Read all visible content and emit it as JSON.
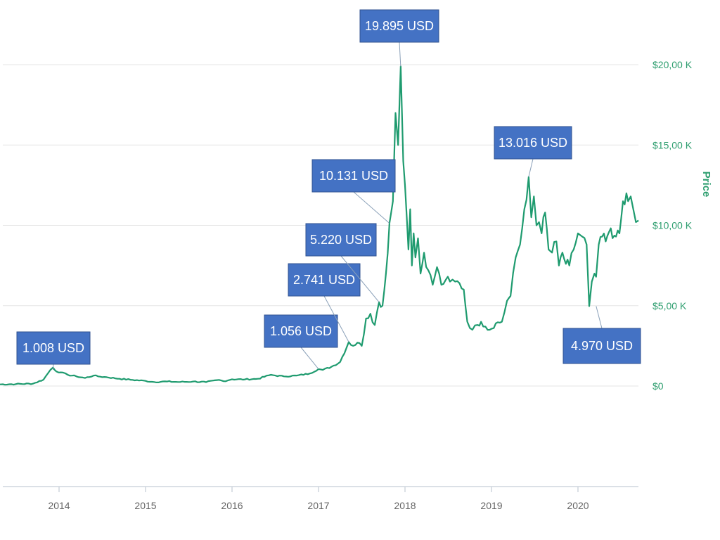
{
  "chart_data": {
    "type": "line",
    "ylabel": "Price",
    "ylim": [
      0,
      22000
    ],
    "x_range": [
      2013.3,
      2020.7
    ],
    "x_ticks": [
      {
        "value": 2014,
        "label": "2014"
      },
      {
        "value": 2015,
        "label": "2015"
      },
      {
        "value": 2016,
        "label": "2016"
      },
      {
        "value": 2017,
        "label": "2017"
      },
      {
        "value": 2018,
        "label": "2018"
      },
      {
        "value": 2019,
        "label": "2019"
      },
      {
        "value": 2020,
        "label": "2020"
      }
    ],
    "y_ticks": [
      {
        "value": 0,
        "label": "$0"
      },
      {
        "value": 5000,
        "label": "$5,00 K"
      },
      {
        "value": 10000,
        "label": "$10,00 K"
      },
      {
        "value": 15000,
        "label": "$15,00 K"
      },
      {
        "value": 20000,
        "label": "$20,00 K"
      }
    ],
    "grid": true,
    "series": [
      {
        "color": "#1f9b6f",
        "x": [
          2013.3,
          2013.5,
          2013.7,
          2013.82,
          2013.9,
          2013.93,
          2013.97,
          2014.02,
          2014.1,
          2014.2,
          2014.3,
          2014.4,
          2014.45,
          2014.55,
          2014.7,
          2014.85,
          2015.0,
          2015.1,
          2015.25,
          2015.4,
          2015.55,
          2015.7,
          2015.85,
          2015.9,
          2016.0,
          2016.15,
          2016.3,
          2016.45,
          2016.5,
          2016.6,
          2016.75,
          2016.9,
          2017.0,
          2017.05,
          2017.15,
          2017.25,
          2017.35,
          2017.4,
          2017.45,
          2017.5,
          2017.55,
          2017.6,
          2017.65,
          2017.7,
          2017.74,
          2017.78,
          2017.82,
          2017.86,
          2017.89,
          2017.92,
          2017.95,
          2017.965,
          2017.98,
          2018.0,
          2018.02,
          2018.04,
          2018.06,
          2018.08,
          2018.1,
          2018.12,
          2018.15,
          2018.18,
          2018.22,
          2018.27,
          2018.32,
          2018.37,
          2018.42,
          2018.47,
          2018.52,
          2018.58,
          2018.63,
          2018.68,
          2018.72,
          2018.78,
          2018.84,
          2018.88,
          2018.93,
          2018.98,
          2019.05,
          2019.12,
          2019.18,
          2019.22,
          2019.28,
          2019.33,
          2019.38,
          2019.43,
          2019.46,
          2019.49,
          2019.52,
          2019.55,
          2019.58,
          2019.62,
          2019.66,
          2019.7,
          2019.75,
          2019.78,
          2019.82,
          2019.86,
          2019.9,
          2019.95,
          2020.0,
          2020.05,
          2020.1,
          2020.13,
          2020.16,
          2020.19,
          2020.21,
          2020.24,
          2020.28,
          2020.32,
          2020.36,
          2020.4,
          2020.44,
          2020.48,
          2020.52,
          2020.56,
          2020.58,
          2020.61,
          2020.64,
          2020.67,
          2020.7
        ],
        "y": [
          100,
          120,
          150,
          400,
          1008,
          1150,
          900,
          850,
          700,
          600,
          500,
          650,
          600,
          550,
          450,
          380,
          320,
          250,
          280,
          250,
          280,
          240,
          380,
          300,
          420,
          410,
          450,
          700,
          650,
          600,
          650,
          780,
          1056,
          1000,
          1200,
          1500,
          2741,
          2500,
          2700,
          2500,
          4200,
          4500,
          3800,
          5220,
          5000,
          7000,
          10131,
          11500,
          17000,
          15000,
          19895,
          17000,
          14000,
          12500,
          10500,
          8500,
          11000,
          7500,
          9500,
          8000,
          9200,
          7000,
          8300,
          7200,
          6300,
          7400,
          6300,
          6600,
          6500,
          6500,
          6400,
          6000,
          4000,
          3500,
          3800,
          4000,
          3700,
          3500,
          3900,
          4000,
          5300,
          5600,
          8000,
          8800,
          11000,
          13016,
          10500,
          11800,
          10000,
          10200,
          9500,
          10800,
          8500,
          8300,
          9000,
          7500,
          8300,
          7600,
          7500,
          8500,
          9500,
          9300,
          8800,
          4970,
          6500,
          7000,
          6800,
          8800,
          9300,
          9000,
          9600,
          9200,
          9300,
          9500,
          11500,
          12000,
          11500,
          11800,
          11000,
          10200,
          10300
        ]
      }
    ],
    "annotations": [
      {
        "text": "1.008 USD",
        "x": 2013.93,
        "y": 1008
      },
      {
        "text": "1.056 USD",
        "x": 2017.0,
        "y": 1056
      },
      {
        "text": "2.741 USD",
        "x": 2017.35,
        "y": 2741
      },
      {
        "text": "5.220 USD",
        "x": 2017.7,
        "y": 5220
      },
      {
        "text": "10.131 USD",
        "x": 2017.82,
        "y": 10131
      },
      {
        "text": "19.895 USD",
        "x": 2017.95,
        "y": 19895
      },
      {
        "text": "13.016 USD",
        "x": 2019.43,
        "y": 13016
      },
      {
        "text": "4.970 USD",
        "x": 2020.21,
        "y": 4970
      }
    ]
  }
}
